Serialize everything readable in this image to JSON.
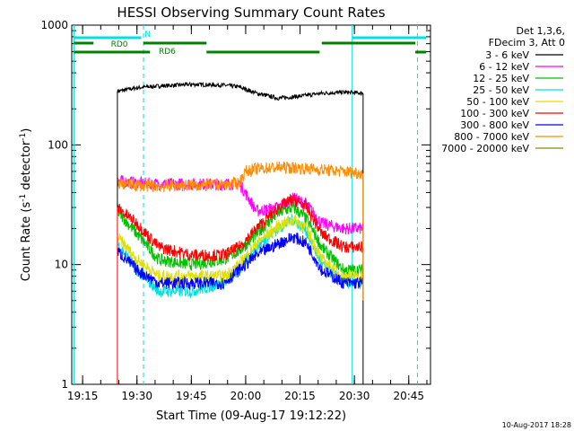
{
  "chart_data": {
    "type": "line",
    "title": "HESSI Observing Summary Count Rates",
    "xlabel": "Start Time (09-Aug-17 19:12:22)",
    "ylabel": "Count Rate (s",
    "ylabel_sup1": "-1",
    "ylabel_mid": " detector",
    "ylabel_sup2": "-1",
    "ylabel_end": ")",
    "y_scale": "log",
    "ylim": [
      1,
      1000
    ],
    "y_ticks": [
      {
        "value": 1,
        "label": "1"
      },
      {
        "value": 10,
        "label": "10"
      },
      {
        "value": 100,
        "label": "100"
      },
      {
        "value": 1000,
        "label": "1000"
      }
    ],
    "xlim_minutes": [
      19.2,
      20.85
    ],
    "x_ticks": [
      {
        "value": 19.25,
        "label": "19:15"
      },
      {
        "value": 19.5,
        "label": "19:30"
      },
      {
        "value": 19.75,
        "label": "19:45"
      },
      {
        "value": 20.0,
        "label": "20:00"
      },
      {
        "value": 20.25,
        "label": "20:15"
      },
      {
        "value": 20.5,
        "label": "20:30"
      },
      {
        "value": 20.75,
        "label": "20:45"
      }
    ],
    "legend_header": [
      "Det 1,3,6,",
      "FDecim 3, Att 0"
    ],
    "legend_position": "top-right, outside plot",
    "series": [
      {
        "name": "3 - 6 keV",
        "color": "#000000",
        "points": [
          [
            19.41,
            280
          ],
          [
            19.5,
            300
          ],
          [
            19.6,
            310
          ],
          [
            19.75,
            320
          ],
          [
            19.9,
            315
          ],
          [
            19.97,
            305
          ],
          [
            20.05,
            270
          ],
          [
            20.15,
            245
          ],
          [
            20.25,
            255
          ],
          [
            20.35,
            270
          ],
          [
            20.45,
            275
          ],
          [
            20.54,
            270
          ]
        ]
      },
      {
        "name": "6 - 12 keV",
        "color": "#ff00ff",
        "points": [
          [
            19.41,
            50
          ],
          [
            19.5,
            48
          ],
          [
            19.6,
            47
          ],
          [
            19.75,
            47
          ],
          [
            19.9,
            47
          ],
          [
            19.97,
            48
          ],
          [
            20.05,
            28
          ],
          [
            20.15,
            30
          ],
          [
            20.22,
            36
          ],
          [
            20.28,
            32
          ],
          [
            20.35,
            22
          ],
          [
            20.45,
            20
          ],
          [
            20.54,
            20
          ]
        ]
      },
      {
        "name": "12 - 25 keV",
        "color": "#00c000",
        "points": [
          [
            19.41,
            28
          ],
          [
            19.5,
            18
          ],
          [
            19.6,
            11
          ],
          [
            19.75,
            10
          ],
          [
            19.9,
            11
          ],
          [
            19.97,
            13
          ],
          [
            20.05,
            18
          ],
          [
            20.15,
            27
          ],
          [
            20.22,
            30
          ],
          [
            20.28,
            24
          ],
          [
            20.35,
            14
          ],
          [
            20.45,
            9
          ],
          [
            20.54,
            9
          ]
        ]
      },
      {
        "name": "25 - 50 keV",
        "color": "#00e0e0",
        "points": [
          [
            19.41,
            15
          ],
          [
            19.5,
            9
          ],
          [
            19.6,
            6
          ],
          [
            19.75,
            6
          ],
          [
            19.9,
            7
          ],
          [
            19.97,
            9
          ],
          [
            20.05,
            14
          ],
          [
            20.15,
            20
          ],
          [
            20.22,
            24
          ],
          [
            20.28,
            19
          ],
          [
            20.35,
            10
          ],
          [
            20.45,
            7
          ],
          [
            20.54,
            7
          ]
        ]
      },
      {
        "name": "50 - 100 keV",
        "color": "#e0e000",
        "points": [
          [
            19.41,
            17
          ],
          [
            19.5,
            11
          ],
          [
            19.6,
            8
          ],
          [
            19.75,
            8
          ],
          [
            19.9,
            8
          ],
          [
            19.97,
            10
          ],
          [
            20.05,
            15
          ],
          [
            20.15,
            21
          ],
          [
            20.22,
            24
          ],
          [
            20.28,
            20
          ],
          [
            20.35,
            11
          ],
          [
            20.45,
            8
          ],
          [
            20.54,
            8
          ]
        ]
      },
      {
        "name": "100 - 300 keV",
        "color": "#ff0000",
        "points": [
          [
            19.41,
            30
          ],
          [
            19.5,
            22
          ],
          [
            19.6,
            14
          ],
          [
            19.75,
            12
          ],
          [
            19.9,
            12
          ],
          [
            19.97,
            14
          ],
          [
            20.05,
            20
          ],
          [
            20.15,
            30
          ],
          [
            20.22,
            35
          ],
          [
            20.28,
            30
          ],
          [
            20.35,
            18
          ],
          [
            20.45,
            14
          ],
          [
            20.54,
            14
          ]
        ]
      },
      {
        "name": "300 - 800 keV",
        "color": "#0000ff",
        "points": [
          [
            19.41,
            13
          ],
          [
            19.5,
            9
          ],
          [
            19.6,
            7
          ],
          [
            19.75,
            7
          ],
          [
            19.9,
            7
          ],
          [
            19.97,
            9
          ],
          [
            20.05,
            12
          ],
          [
            20.15,
            15
          ],
          [
            20.22,
            17
          ],
          [
            20.28,
            15
          ],
          [
            20.35,
            9
          ],
          [
            20.45,
            7
          ],
          [
            20.54,
            7
          ]
        ]
      },
      {
        "name": "800 - 7000 keV",
        "color": "#ff8c00",
        "points": [
          [
            19.41,
            48
          ],
          [
            19.5,
            46
          ],
          [
            19.6,
            45
          ],
          [
            19.75,
            46
          ],
          [
            19.9,
            46
          ],
          [
            19.97,
            48
          ],
          [
            20.0,
            60
          ],
          [
            20.05,
            63
          ],
          [
            20.15,
            65
          ],
          [
            20.25,
            64
          ],
          [
            20.35,
            62
          ],
          [
            20.45,
            60
          ],
          [
            20.54,
            58
          ]
        ]
      },
      {
        "name": "7000 - 20000 keV",
        "color": "#8b8b00",
        "points": []
      }
    ],
    "vertical_markers": [
      {
        "x": 19.21,
        "style": "solid",
        "color": "#00e0e0"
      },
      {
        "x": 19.53,
        "style": "dashed",
        "color": "#00e0e0"
      },
      {
        "x": 20.49,
        "style": "solid",
        "color": "#00e0e0"
      },
      {
        "x": 20.79,
        "style": "dashed",
        "color": "#00e0e0"
      }
    ],
    "flag_bars": [
      {
        "label": "N",
        "color": "#00e0e0",
        "segments": [
          [
            19.21,
            19.52
          ],
          [
            20.49,
            20.83
          ]
        ]
      },
      {
        "label": "RD0",
        "color": "#008000",
        "segments": [
          [
            19.21,
            19.3
          ],
          [
            19.53,
            19.82
          ],
          [
            20.35,
            20.78
          ]
        ]
      },
      {
        "label": "RD6",
        "color": "#008000",
        "segments": [
          [
            19.21,
            19.56
          ],
          [
            19.82,
            20.34
          ],
          [
            20.78,
            20.83
          ]
        ]
      }
    ],
    "footer_timestamp": "10-Aug-2017 18:28"
  }
}
